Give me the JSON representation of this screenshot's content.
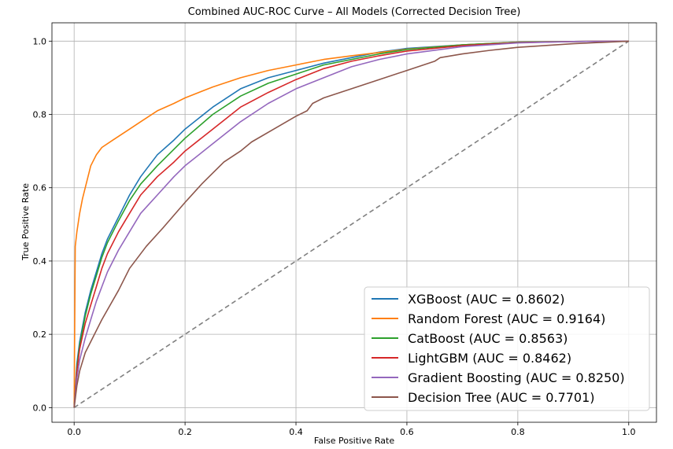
{
  "chart_data": {
    "type": "line",
    "title": "Combined AUC-ROC Curve – All Models (Corrected Decision Tree)",
    "xlabel": "False Positive Rate",
    "ylabel": "True Positive Rate",
    "xlim": [
      -0.04,
      1.05
    ],
    "ylim": [
      -0.04,
      1.05
    ],
    "xticks": [
      0.0,
      0.2,
      0.4,
      0.6,
      0.8,
      1.0
    ],
    "yticks": [
      0.0,
      0.2,
      0.4,
      0.6,
      0.8,
      1.0
    ],
    "xtick_labels": [
      "0.0",
      "0.2",
      "0.4",
      "0.6",
      "0.8",
      "1.0"
    ],
    "ytick_labels": [
      "0.0",
      "0.2",
      "0.4",
      "0.6",
      "0.8",
      "1.0"
    ],
    "grid": true,
    "legend_position": "bottom-right",
    "diagonal": {
      "x": [
        0,
        1
      ],
      "y": [
        0,
        1
      ],
      "color": "#808080",
      "style": "dashed"
    },
    "series": [
      {
        "name": "XGBoost (AUC = 0.8602)",
        "color": "#1f77b4",
        "x": [
          0,
          0.005,
          0.01,
          0.02,
          0.03,
          0.04,
          0.05,
          0.06,
          0.08,
          0.1,
          0.12,
          0.15,
          0.18,
          0.2,
          0.25,
          0.3,
          0.35,
          0.4,
          0.45,
          0.5,
          0.55,
          0.6,
          0.7,
          0.8,
          0.9,
          1.0
        ],
        "y": [
          0,
          0.12,
          0.18,
          0.26,
          0.32,
          0.37,
          0.42,
          0.46,
          0.52,
          0.58,
          0.63,
          0.69,
          0.73,
          0.76,
          0.82,
          0.87,
          0.9,
          0.92,
          0.94,
          0.955,
          0.97,
          0.98,
          0.99,
          0.997,
          0.999,
          1.0
        ]
      },
      {
        "name": "Random Forest (AUC = 0.9164)",
        "color": "#ff7f0e",
        "x": [
          0,
          0.002,
          0.005,
          0.01,
          0.015,
          0.02,
          0.03,
          0.04,
          0.05,
          0.07,
          0.1,
          0.12,
          0.15,
          0.18,
          0.2,
          0.25,
          0.3,
          0.35,
          0.4,
          0.45,
          0.5,
          0.6,
          0.7,
          0.8,
          0.9,
          1.0
        ],
        "y": [
          0,
          0.44,
          0.48,
          0.53,
          0.57,
          0.6,
          0.66,
          0.69,
          0.71,
          0.73,
          0.76,
          0.78,
          0.81,
          0.83,
          0.845,
          0.875,
          0.9,
          0.92,
          0.935,
          0.95,
          0.96,
          0.978,
          0.99,
          0.997,
          0.999,
          1.0
        ]
      },
      {
        "name": "CatBoost (AUC = 0.8563)",
        "color": "#2ca02c",
        "x": [
          0,
          0.005,
          0.01,
          0.02,
          0.03,
          0.04,
          0.05,
          0.06,
          0.08,
          0.1,
          0.12,
          0.15,
          0.18,
          0.2,
          0.25,
          0.3,
          0.35,
          0.4,
          0.45,
          0.5,
          0.55,
          0.6,
          0.7,
          0.8,
          0.9,
          1.0
        ],
        "y": [
          0,
          0.11,
          0.17,
          0.25,
          0.31,
          0.36,
          0.41,
          0.45,
          0.51,
          0.565,
          0.61,
          0.66,
          0.705,
          0.735,
          0.8,
          0.85,
          0.885,
          0.91,
          0.935,
          0.95,
          0.965,
          0.977,
          0.99,
          0.997,
          0.999,
          1.0
        ]
      },
      {
        "name": "LightGBM (AUC = 0.8462)",
        "color": "#d62728",
        "x": [
          0,
          0.005,
          0.01,
          0.02,
          0.03,
          0.04,
          0.05,
          0.06,
          0.08,
          0.1,
          0.12,
          0.15,
          0.18,
          0.2,
          0.25,
          0.3,
          0.35,
          0.4,
          0.45,
          0.5,
          0.55,
          0.6,
          0.7,
          0.8,
          0.9,
          1.0
        ],
        "y": [
          0,
          0.1,
          0.16,
          0.23,
          0.28,
          0.33,
          0.38,
          0.42,
          0.48,
          0.53,
          0.58,
          0.63,
          0.67,
          0.7,
          0.76,
          0.82,
          0.86,
          0.895,
          0.925,
          0.945,
          0.96,
          0.973,
          0.988,
          0.996,
          0.999,
          1.0
        ]
      },
      {
        "name": "Gradient Boosting (AUC = 0.8250)",
        "color": "#9467bd",
        "x": [
          0,
          0.005,
          0.01,
          0.02,
          0.03,
          0.04,
          0.05,
          0.06,
          0.08,
          0.1,
          0.12,
          0.15,
          0.18,
          0.2,
          0.25,
          0.3,
          0.35,
          0.4,
          0.45,
          0.5,
          0.55,
          0.6,
          0.7,
          0.8,
          0.9,
          1.0
        ],
        "y": [
          0,
          0.08,
          0.13,
          0.19,
          0.24,
          0.29,
          0.33,
          0.37,
          0.43,
          0.48,
          0.53,
          0.58,
          0.63,
          0.66,
          0.72,
          0.78,
          0.83,
          0.87,
          0.9,
          0.93,
          0.95,
          0.965,
          0.985,
          0.995,
          0.999,
          1.0
        ]
      },
      {
        "name": "Decision Tree (AUC = 0.7701)",
        "color": "#8c564b",
        "x": [
          0,
          0.005,
          0.01,
          0.02,
          0.03,
          0.05,
          0.08,
          0.1,
          0.13,
          0.16,
          0.2,
          0.23,
          0.27,
          0.3,
          0.32,
          0.36,
          0.4,
          0.42,
          0.43,
          0.45,
          0.5,
          0.55,
          0.6,
          0.65,
          0.66,
          0.7,
          0.75,
          0.8,
          0.9,
          1.0
        ],
        "y": [
          0,
          0.06,
          0.1,
          0.15,
          0.18,
          0.24,
          0.32,
          0.38,
          0.44,
          0.49,
          0.56,
          0.61,
          0.67,
          0.7,
          0.725,
          0.76,
          0.795,
          0.81,
          0.83,
          0.845,
          0.87,
          0.895,
          0.92,
          0.945,
          0.955,
          0.965,
          0.975,
          0.983,
          0.993,
          1.0
        ]
      }
    ]
  }
}
